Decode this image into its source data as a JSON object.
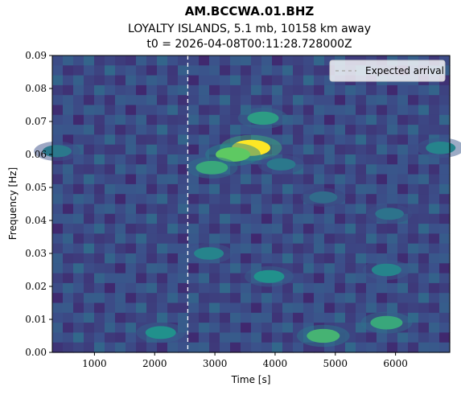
{
  "chart_data": {
    "type": "heatmap",
    "title": "AM.BCCWA.01.BHZ",
    "subtitle": "LOYALTY ISLANDS, 5.1 mb, 10158 km away",
    "subtitle2": "t0 = 2026-04-08T00:11:28.728000Z",
    "xlabel": "Time [s]",
    "ylabel": "Frequency [Hz]",
    "xlim": [
      300,
      6900
    ],
    "ylim": [
      0,
      0.09
    ],
    "x_ticks": [
      "1000",
      "2000",
      "3000",
      "4000",
      "5000",
      "6000"
    ],
    "x_tick_values": [
      1000,
      2000,
      3000,
      4000,
      5000,
      6000
    ],
    "y_ticks": [
      "0.00",
      "0.01",
      "0.02",
      "0.03",
      "0.04",
      "0.05",
      "0.06",
      "0.07",
      "0.08",
      "0.09"
    ],
    "y_tick_values": [
      0,
      0.01,
      0.02,
      0.03,
      0.04,
      0.05,
      0.06,
      0.07,
      0.08,
      0.09
    ],
    "colormap": "viridis",
    "expected_arrival_time": 2550,
    "legend": {
      "label": "Expected arrival",
      "position": "top-right"
    },
    "hotspots": [
      {
        "time": 3600,
        "freq": 0.062,
        "power": 1.0
      },
      {
        "time": 3300,
        "freq": 0.06,
        "power": 0.75
      },
      {
        "time": 2950,
        "freq": 0.056,
        "power": 0.6
      },
      {
        "time": 3800,
        "freq": 0.071,
        "power": 0.55
      },
      {
        "time": 4800,
        "freq": 0.005,
        "power": 0.65
      },
      {
        "time": 5850,
        "freq": 0.009,
        "power": 0.6
      },
      {
        "time": 2100,
        "freq": 0.006,
        "power": 0.5
      },
      {
        "time": 3900,
        "freq": 0.023,
        "power": 0.5
      },
      {
        "time": 5850,
        "freq": 0.025,
        "power": 0.45
      },
      {
        "time": 2900,
        "freq": 0.03,
        "power": 0.45
      },
      {
        "time": 6750,
        "freq": 0.062,
        "power": 0.45
      },
      {
        "time": 380,
        "freq": 0.061,
        "power": 0.4
      },
      {
        "time": 4100,
        "freq": 0.057,
        "power": 0.4
      },
      {
        "time": 5900,
        "freq": 0.042,
        "power": 0.38
      },
      {
        "time": 4800,
        "freq": 0.047,
        "power": 0.35
      }
    ]
  }
}
